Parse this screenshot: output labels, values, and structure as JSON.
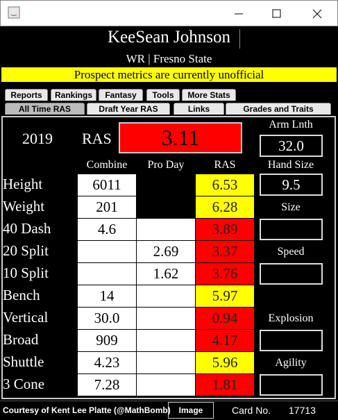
{
  "header": {
    "name": "KeeSean Johnson",
    "subtitle": "WR | Fresno State",
    "banner": "Prospect metrics are currently unofficial"
  },
  "tabs": {
    "row1": [
      "Reports",
      "Rankings",
      "Fantasy",
      "Tools",
      "More Stats"
    ],
    "row2": [
      "All Time RAS",
      "Draft Year RAS",
      "Links",
      "Grades and Traits"
    ]
  },
  "summary": {
    "year": "2019",
    "ras_label": "RAS",
    "ras_score": "3.11",
    "arm_label": "Arm Lnth",
    "arm_value": "32.0",
    "hand_label": "Hand Size",
    "hand_value": "9.5"
  },
  "table": {
    "columns": [
      "Combine",
      "Pro Day",
      "RAS"
    ],
    "rows": [
      {
        "label": "Height",
        "combine": "6011",
        "pro_day": null,
        "ras": "6.53",
        "color": "#ffff00"
      },
      {
        "label": "Weight",
        "combine": "201",
        "pro_day": null,
        "ras": "6.28",
        "color": "#ffff00"
      },
      {
        "label": "40 Dash",
        "combine": "4.6",
        "pro_day": null,
        "ras": "3.89",
        "color": "#ff0000"
      },
      {
        "label": "20 Split",
        "combine": null,
        "pro_day": "2.69",
        "ras": "3.37",
        "color": "#ff0000"
      },
      {
        "label": "10 Split",
        "combine": null,
        "pro_day": "1.62",
        "ras": "3.76",
        "color": "#ff0000"
      },
      {
        "label": "Bench",
        "combine": "14",
        "pro_day": null,
        "ras": "5.97",
        "color": "#ffff00"
      },
      {
        "label": "Vertical",
        "combine": "30.0",
        "pro_day": null,
        "ras": "0.94",
        "color": "#ff0000"
      },
      {
        "label": "Broad",
        "combine": "909",
        "pro_day": null,
        "ras": "4.17",
        "color": "#ff0000"
      },
      {
        "label": "Shuttle",
        "combine": "4.23",
        "pro_day": null,
        "ras": "5.96",
        "color": "#ffff00"
      },
      {
        "label": "3 Cone",
        "combine": "7.28",
        "pro_day": null,
        "ras": "1.81",
        "color": "#ff0000"
      }
    ]
  },
  "grades": [
    "Size",
    "Speed",
    "Explosion",
    "Agility"
  ],
  "footer": {
    "credit": "Courtesy of Kent Lee Platte (@MathBomb)",
    "button": "Image",
    "card_label": "Card No.",
    "card_number": "17713"
  }
}
